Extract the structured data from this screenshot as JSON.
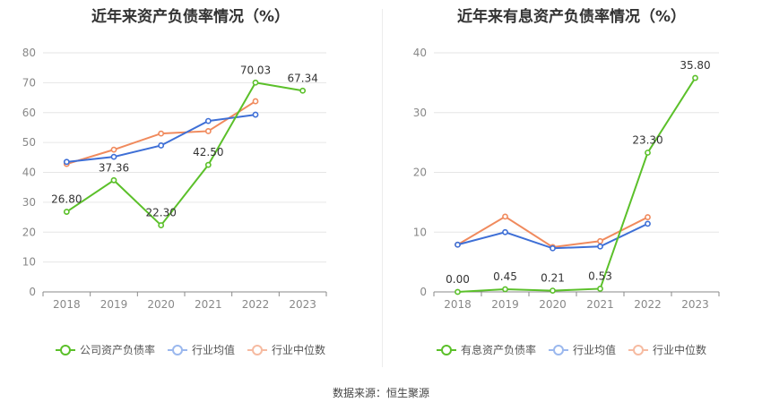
{
  "source": "数据来源：恒生聚源",
  "chart_data": [
    {
      "type": "line",
      "title": "近年来资产负债率情况（%）",
      "x": [
        "2018",
        "2019",
        "2020",
        "2021",
        "2022",
        "2023"
      ],
      "ylim": [
        0,
        80
      ],
      "yticks": [
        0,
        10,
        20,
        30,
        40,
        50,
        60,
        70,
        80
      ],
      "series": [
        {
          "name": "公司资产负债率",
          "color": "#5bc02a",
          "values": [
            26.8,
            37.36,
            22.3,
            42.5,
            70.03,
            67.34
          ],
          "labels": [
            "26.80",
            "37.36",
            "22.30",
            "42.50",
            "70.03",
            "67.34"
          ]
        },
        {
          "name": "行业均值",
          "color": "#3e6fd6",
          "values": [
            43.5,
            45.2,
            49.0,
            57.2,
            59.3,
            null
          ],
          "labels": null
        },
        {
          "name": "行业中位数",
          "color": "#f08a5d",
          "values": [
            42.8,
            47.6,
            53.0,
            53.8,
            63.8,
            null
          ],
          "labels": null
        }
      ]
    },
    {
      "type": "line",
      "title": "近年来有息资产负债率情况（%）",
      "x": [
        "2018",
        "2019",
        "2020",
        "2021",
        "2022",
        "2023"
      ],
      "ylim": [
        0,
        40
      ],
      "yticks": [
        0,
        10,
        20,
        30,
        40
      ],
      "series": [
        {
          "name": "有息资产负债率",
          "color": "#5bc02a",
          "values": [
            0.0,
            0.45,
            0.21,
            0.53,
            23.3,
            35.8
          ],
          "labels": [
            "0.00",
            "0.45",
            "0.21",
            "0.53",
            "23.30",
            "35.80"
          ]
        },
        {
          "name": "行业均值",
          "color": "#3e6fd6",
          "values": [
            7.9,
            10.0,
            7.3,
            7.6,
            11.4,
            null
          ],
          "labels": null
        },
        {
          "name": "行业中位数",
          "color": "#f08a5d",
          "values": [
            7.9,
            12.6,
            7.5,
            8.5,
            12.5,
            null
          ],
          "labels": null
        }
      ]
    }
  ]
}
